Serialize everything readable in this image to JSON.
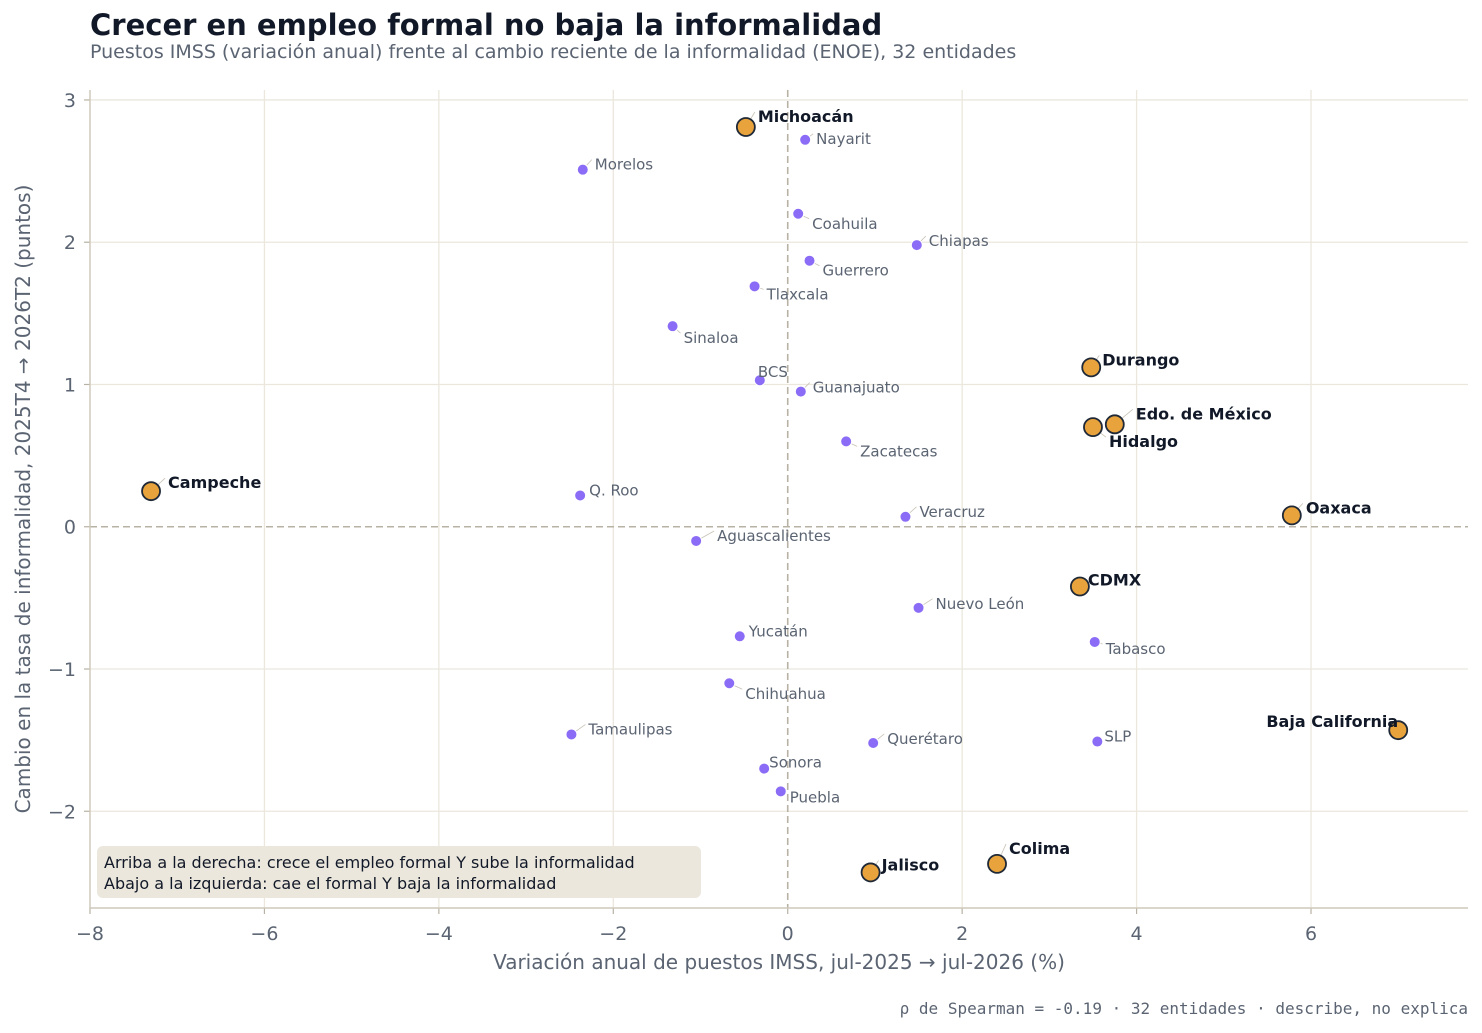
{
  "title": "Crecer en empleo formal no baja la informalidad",
  "subtitle": "Puestos IMSS (variación anual) frente al cambio reciente de la informalidad (ENOE), 32 entidades",
  "footer": "ρ de Spearman = -0.19 · 32 entidades · describe, no explica",
  "note": {
    "line1": "Arriba a la derecha: crece el empleo formal Y sube la informalidad",
    "line2": "Abajo a la izquierda: cae el formal Y baja la informalidad"
  },
  "colors": {
    "regular": "#8b6cf6",
    "highlight": "#e8a33d",
    "highlight_edge": "#1f2937",
    "grid": "#ebe7dd",
    "zero_line": "#b8b2a4"
  },
  "chart_data": {
    "type": "scatter",
    "title": "Crecer en empleo formal no baja la informalidad",
    "xlabel": "Variación anual de puestos IMSS, jul-2025 → jul-2026 (%)",
    "ylabel": "Cambio en la tasa de informalidad, 2025T4 → 2026T2 (puntos)",
    "xlim": [
      -8,
      7.8
    ],
    "ylim": [
      -2.68,
      3.07
    ],
    "xticks": [
      -8,
      -6,
      -4,
      -2,
      0,
      2,
      4,
      6
    ],
    "xtick_labels": [
      "−8",
      "−6",
      "−4",
      "−2",
      "0",
      "2",
      "4",
      "6"
    ],
    "yticks": [
      -2,
      -1,
      0,
      1,
      2,
      3
    ],
    "ytick_labels": [
      "−2",
      "−1",
      "0",
      "1",
      "2",
      "3"
    ],
    "grid": true,
    "points": [
      {
        "name": "Michoacán",
        "x": -0.48,
        "y": 2.81,
        "highlight": true
      },
      {
        "name": "Nayarit",
        "x": 0.2,
        "y": 2.72,
        "highlight": false
      },
      {
        "name": "Morelos",
        "x": -2.35,
        "y": 2.51,
        "highlight": false
      },
      {
        "name": "Coahuila",
        "x": 0.12,
        "y": 2.2,
        "highlight": false
      },
      {
        "name": "Chiapas",
        "x": 1.48,
        "y": 1.98,
        "highlight": false
      },
      {
        "name": "Guerrero",
        "x": 0.25,
        "y": 1.87,
        "highlight": false
      },
      {
        "name": "Tlaxcala",
        "x": -0.38,
        "y": 1.69,
        "highlight": false
      },
      {
        "name": "Sinaloa",
        "x": -1.32,
        "y": 1.41,
        "highlight": false
      },
      {
        "name": "Durango",
        "x": 3.48,
        "y": 1.12,
        "highlight": true
      },
      {
        "name": "BCS",
        "x": -0.32,
        "y": 1.03,
        "highlight": false
      },
      {
        "name": "Guanajuato",
        "x": 0.15,
        "y": 0.95,
        "highlight": false
      },
      {
        "name": "Edo. de México",
        "x": 3.75,
        "y": 0.72,
        "highlight": true
      },
      {
        "name": "Hidalgo",
        "x": 3.5,
        "y": 0.7,
        "highlight": true
      },
      {
        "name": "Zacatecas",
        "x": 0.67,
        "y": 0.6,
        "highlight": false
      },
      {
        "name": "Campeche",
        "x": -7.3,
        "y": 0.25,
        "highlight": true
      },
      {
        "name": "Q. Roo",
        "x": -2.38,
        "y": 0.22,
        "highlight": false
      },
      {
        "name": "Oaxaca",
        "x": 5.78,
        "y": 0.08,
        "highlight": true
      },
      {
        "name": "Veracruz",
        "x": 1.35,
        "y": 0.07,
        "highlight": false
      },
      {
        "name": "Aguascalientes",
        "x": -1.05,
        "y": -0.1,
        "highlight": false
      },
      {
        "name": "CDMX",
        "x": 3.35,
        "y": -0.42,
        "highlight": true
      },
      {
        "name": "Nuevo León",
        "x": 1.5,
        "y": -0.57,
        "highlight": false
      },
      {
        "name": "Yucatán",
        "x": -0.55,
        "y": -0.77,
        "highlight": false
      },
      {
        "name": "Tabasco",
        "x": 3.52,
        "y": -0.81,
        "highlight": false
      },
      {
        "name": "Chihuahua",
        "x": -0.67,
        "y": -1.1,
        "highlight": false
      },
      {
        "name": "Baja California",
        "x": 7.0,
        "y": -1.43,
        "highlight": true
      },
      {
        "name": "Tamaulipas",
        "x": -2.48,
        "y": -1.46,
        "highlight": false
      },
      {
        "name": "Querétaro",
        "x": 0.98,
        "y": -1.52,
        "highlight": false
      },
      {
        "name": "SLP",
        "x": 3.55,
        "y": -1.51,
        "highlight": false
      },
      {
        "name": "Sonora",
        "x": -0.27,
        "y": -1.7,
        "highlight": false
      },
      {
        "name": "Puebla",
        "x": -0.08,
        "y": -1.86,
        "highlight": false
      },
      {
        "name": "Colima",
        "x": 2.4,
        "y": -2.37,
        "highlight": true
      },
      {
        "name": "Jalisco",
        "x": 0.95,
        "y": -2.43,
        "highlight": true
      }
    ]
  }
}
